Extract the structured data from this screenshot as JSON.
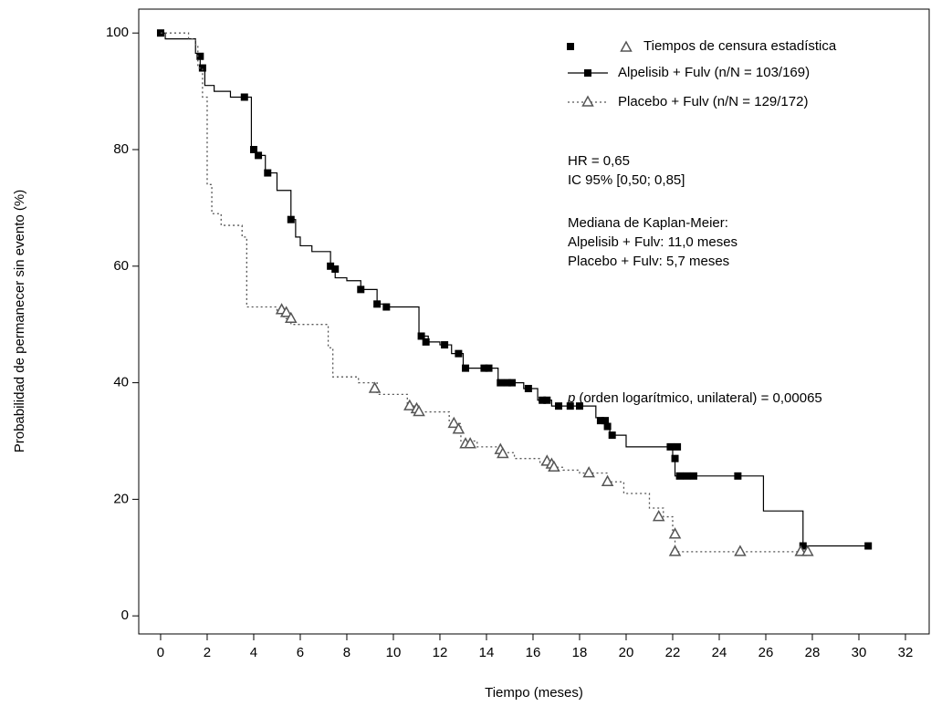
{
  "chart_data": {
    "type": "step",
    "xlabel": "Tiempo (meses)",
    "ylabel": "Probabilidad de permanecer sin evento (%)",
    "xlim": [
      -0.94,
      33.02
    ],
    "ylim": [
      -3.1,
      104.1
    ],
    "xticks": [
      0,
      2,
      4,
      6,
      8,
      10,
      12,
      14,
      16,
      18,
      20,
      22,
      24,
      26,
      28,
      30,
      32
    ],
    "yticks": [
      0,
      20,
      40,
      60,
      80,
      100
    ],
    "censor_label": "Tiempos de censura estadística",
    "series": [
      {
        "name": "Alpelisib + Fulv (n/N = 103/169)",
        "color": "#000000",
        "marker": "square",
        "dash": "solid",
        "x": [
          0,
          0.2,
          1.5,
          1.7,
          1.9,
          2.3,
          3.0,
          3.9,
          4.1,
          4.5,
          5.0,
          5.6,
          5.8,
          6.0,
          6.5,
          7.3,
          7.5,
          8.0,
          8.6,
          9.3,
          9.7,
          11.0,
          11.1,
          11.5,
          12.0,
          12.5,
          13.0,
          14.5,
          15.6,
          16.2,
          16.8,
          18.7,
          19.0,
          19.3,
          20.0,
          22.0,
          22.1,
          25.9,
          27.6,
          30.4
        ],
        "values": [
          100,
          99,
          96.5,
          94,
          91,
          90,
          89,
          80,
          79,
          76,
          73,
          68,
          65,
          63.5,
          62.5,
          60,
          58,
          57.5,
          56,
          53.5,
          53,
          53,
          48,
          47,
          46.5,
          45,
          42.5,
          40,
          39,
          37,
          36,
          34,
          33,
          31,
          29,
          27,
          24,
          18,
          12,
          12
        ],
        "censor_x": [
          0,
          1.7,
          1.8,
          3.6,
          4.0,
          4.2,
          4.6,
          5.6,
          7.3,
          7.5,
          8.6,
          9.3,
          9.7,
          11.2,
          11.4,
          12.2,
          12.8,
          13.1,
          13.9,
          14.1,
          14.6,
          14.9,
          15.1,
          15.8,
          16.4,
          16.6,
          17.1,
          17.6,
          18.0,
          18.9,
          19.1,
          19.2,
          19.4,
          21.9,
          22.2,
          22.1,
          22.3,
          22.6,
          22.9,
          24.8,
          27.6,
          30.4
        ],
        "censor_values": [
          100,
          96,
          94,
          89,
          80,
          79,
          76,
          68,
          60,
          59.5,
          56,
          53.5,
          53,
          48,
          47,
          46.5,
          45,
          42.5,
          42.5,
          42.5,
          40,
          40,
          40,
          39,
          37,
          37,
          36,
          36,
          36,
          33.5,
          33.5,
          32.5,
          31,
          29,
          29,
          27,
          24,
          24,
          24,
          24,
          12,
          12
        ]
      },
      {
        "name": "Placebo + Fulv (n/N = 129/172)",
        "color": "#555555",
        "marker": "triangle",
        "dash": "dotted",
        "x": [
          0,
          1.2,
          1.5,
          1.6,
          1.8,
          2.0,
          2.2,
          2.6,
          3.5,
          3.7,
          5.0,
          5.3,
          5.6,
          7.2,
          7.4,
          8.5,
          9.3,
          10.6,
          11.0,
          12.4,
          12.9,
          13.6,
          14.6,
          15.2,
          16.3,
          16.9,
          17.3,
          18.0,
          19.2,
          19.9,
          21.0,
          21.6,
          22.0,
          22.1,
          27.7
        ],
        "values": [
          100,
          99,
          98,
          94,
          89,
          74,
          69,
          67,
          65,
          53,
          52,
          51,
          50,
          46,
          41,
          40,
          38,
          36,
          35,
          33,
          30,
          29,
          28,
          27,
          26,
          25.5,
          25,
          24.5,
          23,
          21,
          18.5,
          17,
          14,
          11,
          11
        ],
        "censor_x": [
          5.2,
          5.4,
          5.6,
          9.2,
          10.7,
          11.0,
          11.1,
          12.6,
          12.8,
          13.1,
          13.3,
          14.6,
          14.7,
          16.6,
          16.8,
          16.9,
          18.4,
          19.2,
          21.4,
          22.1,
          22.1,
          24.9,
          27.5,
          27.8
        ],
        "censor_values": [
          52.5,
          52,
          51,
          39,
          36,
          35.5,
          35,
          33,
          32,
          29.5,
          29.5,
          28.5,
          27.8,
          26.5,
          26,
          25.5,
          24.5,
          23,
          17,
          14,
          11,
          11,
          11,
          11
        ]
      }
    ],
    "annotations": [
      "HR = 0,65",
      "IC 95% [0,50; 0,85]",
      "Mediana de Kaplan-Meier:",
      "Alpelisib + Fulv: 11,0 meses",
      "Placebo + Fulv: 5,7 meses"
    ],
    "p_value": {
      "symbol": "p",
      "text": "(orden logarítmico, unilateral) = 0,00065"
    }
  }
}
